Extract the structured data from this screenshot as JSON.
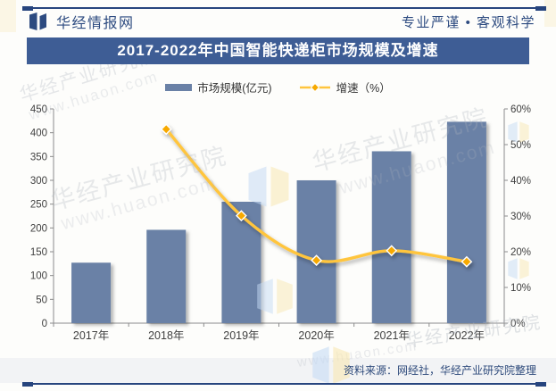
{
  "header": {
    "brand": "华经情报网",
    "slogan": "专业严谨 • 客观科学"
  },
  "title": "2017-2022年中国智能快递柜市场规模及增速",
  "legend": {
    "market_label": "市场规模(亿元)",
    "growth_label": "增速（%）"
  },
  "chart_data": {
    "type": "bar",
    "title": "2017-2022年中国智能快递柜市场规模及增速",
    "categories": [
      "2017年",
      "2018年",
      "2019年",
      "2020年",
      "2021年",
      "2022年"
    ],
    "series": [
      {
        "name": "市场规模(亿元)",
        "type": "bar",
        "axis": "left",
        "color": "#6A81A6",
        "values": [
          127,
          196,
          255,
          300,
          361,
          423
        ]
      },
      {
        "name": "增速（%）",
        "type": "line",
        "axis": "right",
        "color": "#FFC53D",
        "marker_color": "#F7A900",
        "categories": [
          "2018年",
          "2019年",
          "2020年",
          "2021年",
          "2022年"
        ],
        "values": [
          54.3,
          30.1,
          17.6,
          20.3,
          17.2
        ]
      }
    ],
    "left_axis": {
      "min": 0,
      "max": 450,
      "step": 50,
      "ticks": [
        0,
        50,
        100,
        150,
        200,
        250,
        300,
        350,
        400,
        450
      ]
    },
    "right_axis": {
      "min": 0,
      "max": 60,
      "step": 10,
      "ticks": [
        "0%",
        "10%",
        "20%",
        "30%",
        "40%",
        "50%",
        "60%"
      ]
    },
    "grid": false,
    "legend_position": "top"
  },
  "footer": {
    "source": "资料来源：网经社，华经产业研究院整理"
  },
  "watermarks": {
    "org": "华经产业研究院",
    "site": "www.huaon.com"
  },
  "colors": {
    "navy": "#27457E",
    "header_text": "#2D4B80",
    "title_bg": "#3E5D95",
    "bar": "#6A81A6",
    "line": "#FFC53D",
    "marker": "#F7A900",
    "axis": "#8C8C8C",
    "tick_text": "#404040",
    "footer_bg": "#F2F3F5"
  }
}
